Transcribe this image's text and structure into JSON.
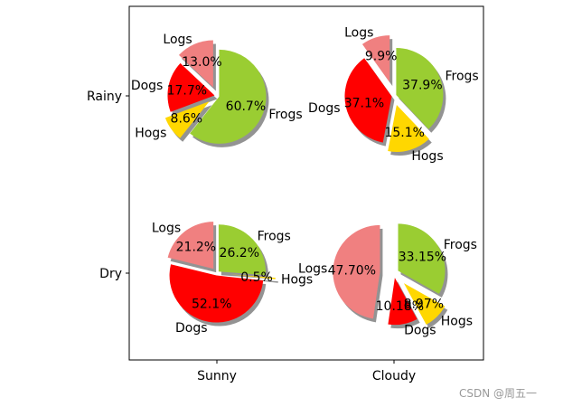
{
  "chart_data": {
    "type": "pie",
    "xlabel": "",
    "ylabel": "",
    "xtick_labels": [
      "Sunny",
      "Cloudy"
    ],
    "ytick_labels": [
      "Rainy",
      "Dry"
    ],
    "grid": false,
    "legend": "none",
    "colors": {
      "Logs": "#f08080",
      "Dogs": "#ff0000",
      "Hogs": "#ffd700",
      "Frogs": "#9acd32"
    },
    "pies": [
      {
        "weather": "Rainy-Sunny",
        "slices": [
          {
            "label": "Logs",
            "percent": 13.0,
            "pct_text": "13.0%",
            "explode": 0.2
          },
          {
            "label": "Dogs",
            "percent": 17.7,
            "pct_text": "17.7%",
            "explode": 0.05
          },
          {
            "label": "Hogs",
            "percent": 8.6,
            "pct_text": "8.6%",
            "explode": 0.2
          },
          {
            "label": "Frogs",
            "percent": 60.7,
            "pct_text": "60.7%",
            "explode": 0.05
          }
        ]
      },
      {
        "weather": "Rainy-Cloudy",
        "slices": [
          {
            "label": "Logs",
            "percent": 9.9,
            "pct_text": "9.9%",
            "explode": 0.3
          },
          {
            "label": "Dogs",
            "percent": 37.1,
            "pct_text": "37.1%",
            "explode": 0.05
          },
          {
            "label": "Hogs",
            "percent": 15.1,
            "pct_text": "15.1%",
            "explode": 0.2
          },
          {
            "label": "Frogs",
            "percent": 37.9,
            "pct_text": "37.9%",
            "explode": 0.05
          }
        ]
      },
      {
        "weather": "Dry-Sunny",
        "slices": [
          {
            "label": "Logs",
            "percent": 21.2,
            "pct_text": "21.2%",
            "explode": 0.12
          },
          {
            "label": "Dogs",
            "percent": 52.1,
            "pct_text": "52.1%",
            "explode": 0.05
          },
          {
            "label": "Hogs",
            "percent": 0.5,
            "pct_text": "0.5%",
            "explode": 0.25
          },
          {
            "label": "Frogs",
            "percent": 26.2,
            "pct_text": "26.2%",
            "explode": 0.05
          }
        ]
      },
      {
        "weather": "Dry-Cloudy",
        "slices": [
          {
            "label": "Logs",
            "percent": 47.7,
            "pct_text": "47.70%",
            "explode": 0.3
          },
          {
            "label": "Dogs",
            "percent": 10.18,
            "pct_text": "10.18%",
            "explode": 0.1
          },
          {
            "label": "Hogs",
            "percent": 8.97,
            "pct_text": "8.97%",
            "explode": 0.3
          },
          {
            "label": "Frogs",
            "percent": 33.15,
            "pct_text": "33.15%",
            "explode": 0.1
          }
        ]
      }
    ]
  },
  "watermark": "CSDN @周五一"
}
